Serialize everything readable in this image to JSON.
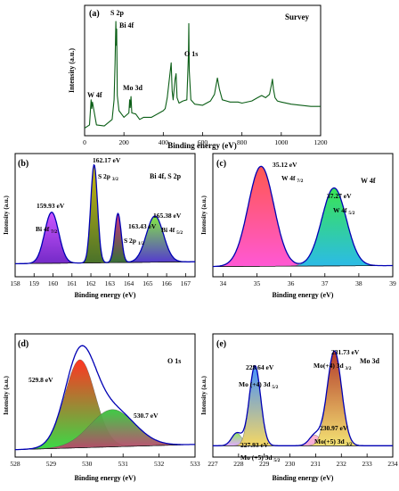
{
  "colors": {
    "survey_line": "#0b5e16",
    "envelope": "#0000b4",
    "bg_line": "#101010",
    "axis": "#000000"
  },
  "chart_data": [
    {
      "type": "line",
      "panel": "(a)",
      "corner_label": "Survey",
      "xlabel": "Binding energy (eV)",
      "ylabel": "Intensity (a.u.)",
      "xlim": [
        0,
        1200
      ],
      "xticks": [
        "0",
        "200",
        "400",
        "600",
        "800",
        "1000",
        "1200"
      ],
      "peaks": [
        {
          "label": "W 4f",
          "x": 35
        },
        {
          "label": "S 2p",
          "x": 162
        },
        {
          "label": "Bi 4f",
          "x": 159
        },
        {
          "label": "Mo 3d",
          "x": 230
        },
        {
          "label": "O 1s",
          "x": 530
        }
      ],
      "x": [
        0,
        25,
        33,
        36,
        40,
        60,
        100,
        140,
        150,
        155,
        159,
        161,
        163,
        166,
        175,
        200,
        225,
        229,
        232,
        236,
        240,
        260,
        280,
        300,
        340,
        380,
        400,
        410,
        420,
        440,
        445,
        450,
        460,
        465,
        470,
        480,
        500,
        520,
        528,
        530,
        532,
        540,
        560,
        600,
        640,
        660,
        675,
        685,
        700,
        740,
        780,
        800,
        850,
        880,
        900,
        920,
        940,
        950,
        955,
        960,
        968,
        980,
        1000,
        1050,
        1100,
        1150,
        1200
      ],
      "y": [
        0.02,
        0.05,
        0.28,
        0.2,
        0.26,
        0.05,
        0.04,
        0.1,
        0.28,
        0.62,
        1.0,
        0.78,
        0.93,
        0.32,
        0.18,
        0.12,
        0.16,
        0.28,
        0.21,
        0.31,
        0.16,
        0.15,
        0.1,
        0.12,
        0.12,
        0.16,
        0.18,
        0.2,
        0.3,
        0.62,
        0.36,
        0.28,
        0.47,
        0.52,
        0.3,
        0.25,
        0.27,
        0.28,
        0.7,
        0.98,
        0.55,
        0.28,
        0.24,
        0.23,
        0.27,
        0.33,
        0.48,
        0.38,
        0.28,
        0.26,
        0.26,
        0.25,
        0.27,
        0.3,
        0.32,
        0.3,
        0.33,
        0.42,
        0.47,
        0.38,
        0.3,
        0.27,
        0.26,
        0.24,
        0.23,
        0.22,
        0.22
      ]
    },
    {
      "type": "area",
      "panel": "(b)",
      "corner_label": "Bi 4f, S 2p",
      "xlabel": "Binding energy (eV)",
      "ylabel": "Intensity (a.u.)",
      "xlim": [
        158,
        167.5
      ],
      "xticks": [
        "158",
        "159",
        "160",
        "161",
        "162",
        "163",
        "164",
        "165",
        "166",
        "167"
      ],
      "peaks": [
        {
          "center": 159.93,
          "sigma": 0.37,
          "height": 0.52,
          "value_label": "159.93 eV",
          "species": "Bi 4f",
          "sub": "7/2",
          "colors": [
            "#c84bff",
            "#6c1fc4"
          ]
        },
        {
          "center": 162.17,
          "sigma": 0.18,
          "height": 1.0,
          "value_label": "162.17 eV",
          "species": "S 2p",
          "sub": "3/2",
          "colors": [
            "#c9b300",
            "#3f6a1f"
          ]
        },
        {
          "center": 163.43,
          "sigma": 0.17,
          "height": 0.5,
          "value_label": "163.43 eV",
          "species": "S 2p",
          "sub": "1/2",
          "colors": [
            "#c7257b",
            "#2b6a2b"
          ]
        },
        {
          "center": 165.38,
          "sigma": 0.45,
          "height": 0.47,
          "value_label": "165.38 eV",
          "species": "Bi 4f",
          "sub": "5/2",
          "colors": [
            "#7ee73a",
            "#4a2bd0"
          ]
        }
      ]
    },
    {
      "type": "area",
      "panel": "(c)",
      "corner_label": "W 4f",
      "xlabel": "Binding energy (eV)",
      "ylabel": "Intensity (a.u.)",
      "xlim": [
        33.7,
        39
      ],
      "xticks": [
        "34",
        "35",
        "36",
        "37",
        "38",
        "39"
      ],
      "peaks": [
        {
          "center": 35.12,
          "sigma": 0.38,
          "height": 1.0,
          "value_label": "35.12 eV",
          "species": "W 4f",
          "sub": "7/2",
          "colors": [
            "#ff4f46",
            "#ff4fd2"
          ]
        },
        {
          "center": 37.27,
          "sigma": 0.36,
          "height": 0.78,
          "value_label": "37.27 eV",
          "species": "W 4f",
          "sub": "5/2",
          "colors": [
            "#2fe24a",
            "#20b7e6"
          ]
        }
      ]
    },
    {
      "type": "area",
      "panel": "(d)",
      "corner_label": "O 1s",
      "xlabel": "Binding energy (eV)",
      "ylabel": "Intensity (a.u.)",
      "xlim": [
        528,
        533
      ],
      "xticks": [
        "528",
        "529",
        "530",
        "531",
        "532",
        "533"
      ],
      "peaks": [
        {
          "center": 529.8,
          "sigma": 0.42,
          "height": 0.85,
          "value_label": "529.8 eV",
          "colors": [
            "#ff2a16",
            "#2fd83d"
          ]
        },
        {
          "center": 530.7,
          "sigma": 0.62,
          "height": 0.36,
          "value_label": "530.7 eV",
          "colors": [
            "#35c93b",
            "#c0416e"
          ]
        }
      ]
    },
    {
      "type": "area",
      "panel": "(e)",
      "corner_label": "Mo 3d",
      "xlabel": "Binding energy (eV)",
      "ylabel": "Intensity (a.u.)",
      "xlim": [
        227,
        234
      ],
      "xticks": [
        "227",
        "228",
        "229",
        "230",
        "231",
        "232",
        "233",
        "234"
      ],
      "peaks": [
        {
          "center": 227.93,
          "sigma": 0.2,
          "height": 0.12,
          "value_label": "227.93 eV",
          "species": "Mo (+5) 3d",
          "sub": "5/2",
          "colors": [
            "#8ee85b",
            "#e0a5ff"
          ]
        },
        {
          "center": 228.64,
          "sigma": 0.22,
          "height": 0.76,
          "value_label": "228.64 eV",
          "species": "Mo (+4) 3d",
          "sub": "5/2",
          "colors": [
            "#3b8cff",
            "#f5d55b"
          ]
        },
        {
          "center": 230.97,
          "sigma": 0.22,
          "height": 0.1,
          "value_label": "230.97 eV",
          "species": "Mo(+5) 3d",
          "sub": "3/2",
          "colors": [
            "#ffb6c9",
            "#f4a3d8"
          ]
        },
        {
          "center": 231.73,
          "sigma": 0.28,
          "height": 0.9,
          "value_label": "231.73 eV",
          "species": "Mo(+4) 3d",
          "sub": "3/2",
          "colors": [
            "#b0301f",
            "#f3e16c"
          ]
        }
      ]
    }
  ]
}
